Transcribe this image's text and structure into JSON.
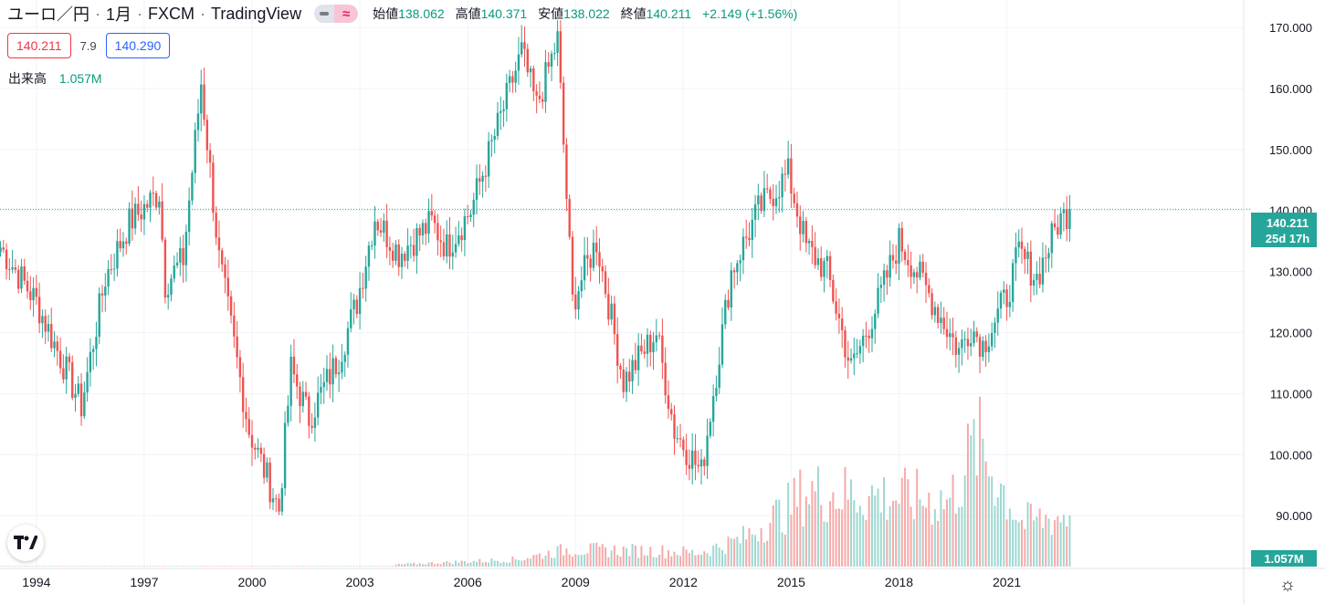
{
  "header": {
    "symbol": "ユーロ／円",
    "interval": "1月",
    "exchange": "FXCM",
    "provider": "TradingView",
    "ohlc": {
      "open_label": "始値",
      "open": "138.062",
      "high_label": "高値",
      "high": "140.371",
      "low_label": "安値",
      "low": "138.022",
      "close_label": "終値",
      "close": "140.211",
      "change": "+2.149 (+1.56%)"
    }
  },
  "price_boxes": {
    "sell": "140.211",
    "spread": "7.9",
    "buy": "140.290"
  },
  "volume_legend": {
    "label": "出来高",
    "value": "1.057M"
  },
  "axis_badges": {
    "last_price": "140.211",
    "countdown": "25d 17h",
    "volume": "1.057M"
  },
  "colors": {
    "up": "#26a69a",
    "down": "#ef5350",
    "vol_up": "#9fd8d2",
    "vol_down": "#f5aaa9",
    "last_line": "#26a69a"
  },
  "icons": {
    "logo": "tradingview-logo-icon",
    "settings": "gear-icon"
  },
  "chart_data": {
    "type": "candlestick",
    "title": "ユーロ／円 · 1月 · FXCM",
    "interval": "monthly",
    "x_ticks": [
      "1994",
      "1997",
      "2000",
      "2003",
      "2006",
      "2009",
      "2012",
      "2015",
      "2018",
      "2021"
    ],
    "y_ticks": [
      90,
      100,
      110,
      120,
      130,
      140,
      150,
      160,
      170
    ],
    "ylim": [
      81.5,
      174.5
    ],
    "grid": true,
    "last_price": 140.211,
    "anchors": [
      [
        "1993-01",
        134
      ],
      [
        "1994-01",
        125
      ],
      [
        "1995-04",
        108
      ],
      [
        "1995-12",
        129
      ],
      [
        "1996-08",
        138
      ],
      [
        "1997-06",
        143
      ],
      [
        "1997-08",
        128
      ],
      [
        "1998-02",
        132
      ],
      [
        "1998-08",
        161
      ],
      [
        "1999-02",
        132
      ],
      [
        "1999-12",
        104
      ],
      [
        "2000-10",
        91
      ],
      [
        "2001-02",
        114
      ],
      [
        "2001-08",
        106
      ],
      [
        "2002-06",
        116
      ],
      [
        "2002-12",
        125
      ],
      [
        "2003-06",
        139
      ],
      [
        "2004-02",
        133
      ],
      [
        "2005-01",
        138
      ],
      [
        "2005-06",
        134
      ],
      [
        "2006-02",
        140
      ],
      [
        "2007-07",
        166
      ],
      [
        "2007-12",
        157
      ],
      [
        "2008-07",
        168
      ],
      [
        "2008-12",
        125
      ],
      [
        "2009-08",
        135
      ],
      [
        "2010-05",
        112
      ],
      [
        "2011-04",
        120
      ],
      [
        "2011-10",
        104
      ],
      [
        "2012-07",
        97
      ],
      [
        "2013-05",
        130
      ],
      [
        "2014-02",
        140
      ],
      [
        "2014-12",
        146
      ],
      [
        "2015-06",
        134
      ],
      [
        "2016-01",
        130
      ],
      [
        "2016-09",
        114
      ],
      [
        "2017-06",
        125
      ],
      [
        "2018-01",
        135
      ],
      [
        "2018-08",
        129
      ],
      [
        "2019-09",
        117
      ],
      [
        "2020-01",
        121
      ],
      [
        "2020-05",
        118
      ],
      [
        "2021-01",
        126
      ],
      [
        "2021-05",
        133
      ],
      [
        "2021-11",
        129
      ],
      [
        "2022-06",
        138
      ],
      [
        "2022-10",
        140.2
      ]
    ],
    "volume_ylim": [
      0,
      3.0
    ],
    "volume_profile": [
      [
        "1993-01",
        0.01
      ],
      [
        "2003-12",
        0.01
      ],
      [
        "2004-01",
        0.04
      ],
      [
        "2007-06",
        0.15
      ],
      [
        "2008-10",
        0.35
      ],
      [
        "2011-06",
        0.32
      ],
      [
        "2012-06",
        0.28
      ],
      [
        "2013-08",
        0.55
      ],
      [
        "2014-12",
        1.2
      ],
      [
        "2015-06",
        1.55
      ],
      [
        "2017-06",
        1.45
      ],
      [
        "2019-06",
        1.35
      ],
      [
        "2020-03",
        2.55
      ],
      [
        "2021-06",
        0.9
      ],
      [
        "2022-10",
        1.057
      ]
    ]
  }
}
